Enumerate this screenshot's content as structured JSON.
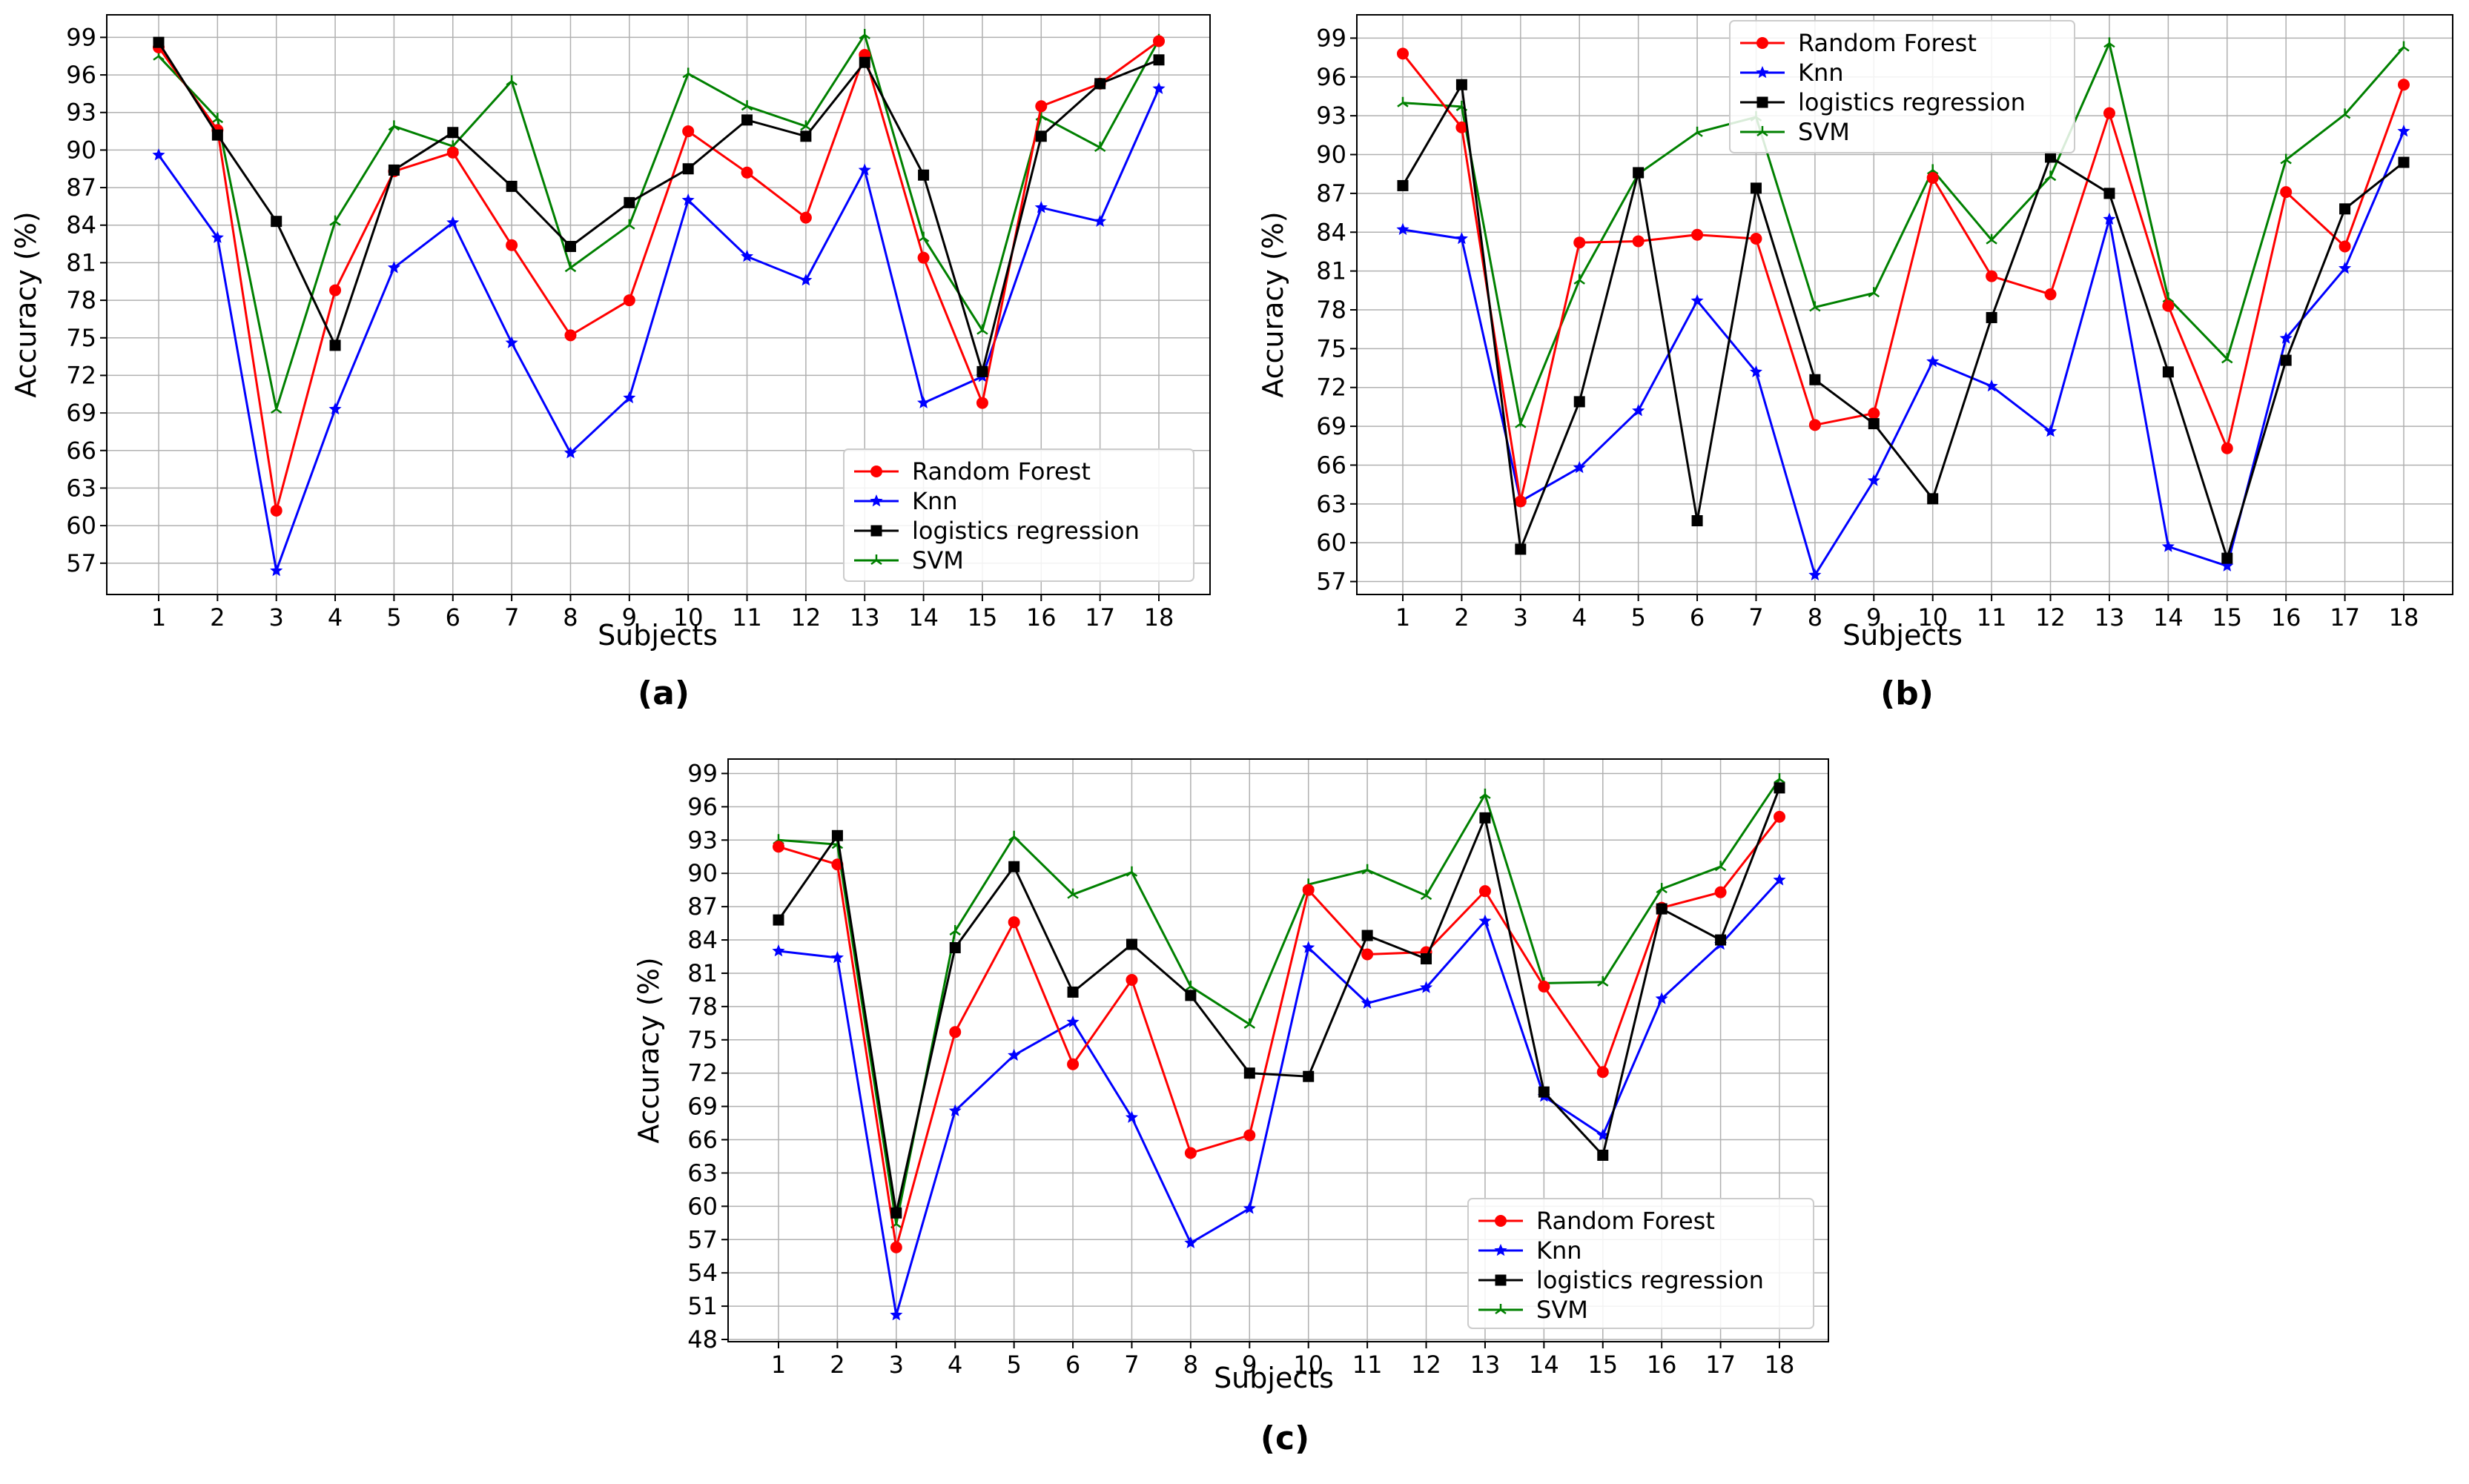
{
  "colors": {
    "Random Forest": "#ff0000",
    "Knn": "#0000ff",
    "logistics regression": "#000000",
    "SVM": "#008000",
    "grid": "#b0b0b0"
  },
  "chart_data": [
    {
      "type": "line",
      "caption": "(a)",
      "xlabel": "Subjects",
      "ylabel": "Accuracy (%)",
      "legend_position": "lower-right",
      "x": [
        1,
        2,
        3,
        4,
        5,
        6,
        7,
        8,
        9,
        10,
        11,
        12,
        13,
        14,
        15,
        16,
        17,
        18
      ],
      "ylim": [
        54.5,
        100.8
      ],
      "yticks": [
        57,
        60,
        63,
        66,
        69,
        72,
        75,
        78,
        81,
        84,
        87,
        90,
        93,
        96,
        99
      ],
      "series": [
        {
          "name": "Random Forest",
          "marker": "circle",
          "values": [
            98.2,
            91.6,
            61.2,
            78.8,
            88.3,
            89.8,
            82.4,
            75.2,
            78.0,
            91.5,
            88.2,
            84.6,
            97.6,
            81.4,
            69.8,
            93.5,
            95.3,
            98.7
          ]
        },
        {
          "name": "Knn",
          "marker": "star",
          "values": [
            89.6,
            83.0,
            56.4,
            69.3,
            80.6,
            84.2,
            74.6,
            65.8,
            70.2,
            86.0,
            81.5,
            79.6,
            88.4,
            69.8,
            71.9,
            85.4,
            84.3,
            94.9
          ]
        },
        {
          "name": "logistics regression",
          "marker": "square",
          "values": [
            98.6,
            91.2,
            84.3,
            74.4,
            88.4,
            91.4,
            87.1,
            82.3,
            85.8,
            88.5,
            92.4,
            91.1,
            97.0,
            88.0,
            72.3,
            91.1,
            95.3,
            97.2
          ]
        },
        {
          "name": "SVM",
          "marker": "tri",
          "values": [
            97.5,
            92.5,
            69.3,
            84.3,
            91.9,
            90.3,
            95.5,
            80.6,
            84.0,
            96.1,
            93.5,
            91.9,
            99.2,
            83.0,
            75.6,
            92.7,
            90.2,
            98.8
          ]
        }
      ]
    },
    {
      "type": "line",
      "caption": "(b)",
      "xlabel": "Subjects",
      "ylabel": "Accuracy (%)",
      "legend_position": "top-center",
      "x": [
        1,
        2,
        3,
        4,
        5,
        6,
        7,
        8,
        9,
        10,
        11,
        12,
        13,
        14,
        15,
        16,
        17,
        18
      ],
      "ylim": [
        56.0,
        100.8
      ],
      "yticks": [
        57,
        60,
        63,
        66,
        69,
        72,
        75,
        78,
        81,
        84,
        87,
        90,
        93,
        96,
        99
      ],
      "series": [
        {
          "name": "Random Forest",
          "marker": "circle",
          "values": [
            97.8,
            92.1,
            63.2,
            83.2,
            83.3,
            83.8,
            83.5,
            69.1,
            70.0,
            88.2,
            80.6,
            79.2,
            93.2,
            78.3,
            67.3,
            87.1,
            82.9,
            95.4
          ]
        },
        {
          "name": "Knn",
          "marker": "star",
          "values": [
            84.2,
            83.5,
            63.2,
            65.8,
            70.2,
            78.7,
            73.2,
            57.5,
            64.8,
            74.0,
            72.1,
            68.6,
            85.0,
            59.7,
            58.2,
            75.8,
            81.2,
            91.8
          ]
        },
        {
          "name": "logistics regression",
          "marker": "square",
          "values": [
            87.6,
            95.4,
            59.5,
            70.9,
            88.6,
            61.7,
            87.4,
            72.6,
            69.2,
            63.4,
            77.4,
            89.8,
            87.0,
            73.2,
            58.8,
            74.1,
            85.8,
            89.4
          ]
        },
        {
          "name": "SVM",
          "marker": "tri",
          "values": [
            94.0,
            93.7,
            69.2,
            80.3,
            88.5,
            91.7,
            92.9,
            78.2,
            79.3,
            88.8,
            83.4,
            88.3,
            98.6,
            78.9,
            74.2,
            89.6,
            93.1,
            98.3
          ]
        }
      ]
    },
    {
      "type": "line",
      "caption": "(c)",
      "xlabel": "Subjects",
      "ylabel": "Accuracy (%)",
      "legend_position": "lower-right",
      "x": [
        1,
        2,
        3,
        4,
        5,
        6,
        7,
        8,
        9,
        10,
        11,
        12,
        13,
        14,
        15,
        16,
        17,
        18
      ],
      "ylim": [
        47.8,
        100.3
      ],
      "yticks": [
        48,
        51,
        54,
        57,
        60,
        63,
        66,
        69,
        72,
        75,
        78,
        81,
        84,
        87,
        90,
        93,
        96,
        99
      ],
      "series": [
        {
          "name": "Random Forest",
          "marker": "circle",
          "values": [
            92.4,
            90.8,
            56.3,
            75.7,
            85.6,
            72.8,
            80.4,
            64.8,
            66.4,
            88.5,
            82.7,
            82.9,
            88.4,
            79.8,
            72.1,
            86.9,
            88.3,
            95.1
          ]
        },
        {
          "name": "Knn",
          "marker": "star",
          "values": [
            83.0,
            82.4,
            50.2,
            68.6,
            73.6,
            76.6,
            68.0,
            56.7,
            59.8,
            83.3,
            78.3,
            79.7,
            85.7,
            69.9,
            66.4,
            78.7,
            83.6,
            89.4
          ]
        },
        {
          "name": "logistics regression",
          "marker": "square",
          "values": [
            85.8,
            93.4,
            59.4,
            83.3,
            90.6,
            79.3,
            83.6,
            79.0,
            72.0,
            71.7,
            84.4,
            82.3,
            95.0,
            70.3,
            64.6,
            86.8,
            84.0,
            97.7
          ]
        },
        {
          "name": "SVM",
          "marker": "tri",
          "values": [
            93.0,
            92.6,
            58.4,
            84.8,
            93.3,
            88.1,
            90.1,
            79.8,
            76.4,
            89.0,
            90.3,
            88.0,
            97.1,
            80.1,
            80.2,
            88.6,
            90.6,
            98.5
          ]
        }
      ]
    }
  ]
}
